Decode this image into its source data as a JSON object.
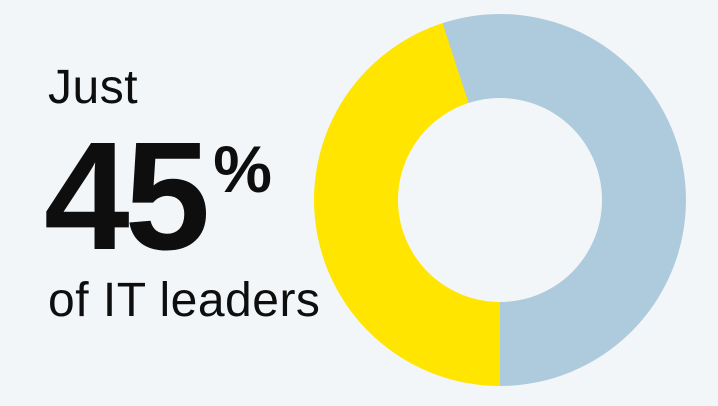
{
  "card": {
    "background": "#f2f6f8",
    "text_color": "#0e0e0e",
    "prefix": "Just",
    "value": "45",
    "unit": "%",
    "suffix": "of IT leaders"
  },
  "chart_data": {
    "type": "pie",
    "subtype": "donut",
    "title": "Just 45% of IT leaders",
    "categories": [
      "highlighted-share",
      "remainder"
    ],
    "values": [
      45,
      55
    ],
    "colors": [
      "#ffe500",
      "#aecbdd"
    ],
    "start_angle_deg": 180,
    "direction": "clockwise",
    "inner_radius_ratio": 0.55,
    "legend": false,
    "data_labels": false
  }
}
